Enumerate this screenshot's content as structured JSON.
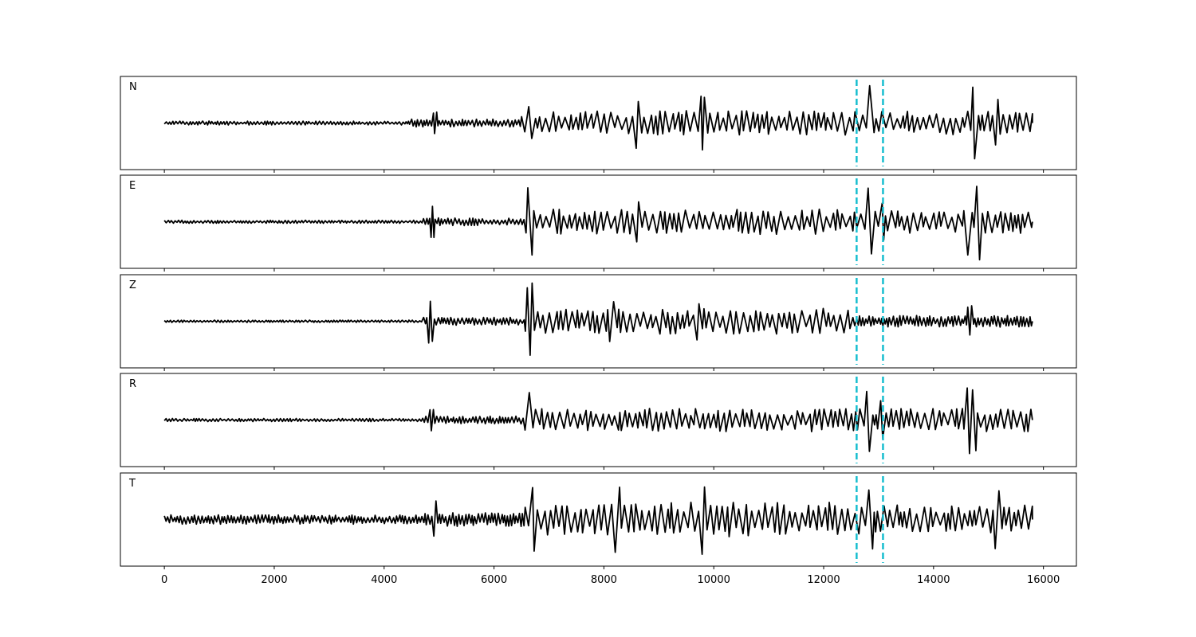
{
  "chart_data": {
    "type": "line",
    "xlim": [
      -800,
      16600
    ],
    "x_ticks": [
      0,
      2000,
      4000,
      6000,
      8000,
      10000,
      12000,
      14000,
      16000
    ],
    "x_tick_labels": [
      "0",
      "2000",
      "4000",
      "6000",
      "8000",
      "10000",
      "12000",
      "14000",
      "16000"
    ],
    "x_range": [
      0,
      15800
    ],
    "ylim": [
      -1.2,
      1.2
    ],
    "y_ticks_shown": false,
    "grid": false,
    "line_color": "#000000",
    "marker_color": "#17becf",
    "markers": [
      12600,
      13080
    ],
    "panels": [
      {
        "label": "N",
        "segments": [
          {
            "from": 0,
            "to": 4500,
            "amp": 0.05
          },
          {
            "from": 4500,
            "to": 6500,
            "amp": 0.1
          },
          {
            "from": 6500,
            "to": 12500,
            "amp": 0.32
          },
          {
            "from": 12500,
            "to": 15800,
            "amp": 0.3
          }
        ],
        "events": [
          {
            "x": 4930,
            "amp": 0.3
          },
          {
            "x": 6650,
            "amp": 0.45
          },
          {
            "x": 8600,
            "amp": 0.65
          },
          {
            "x": 9800,
            "amp": 0.75
          },
          {
            "x": 12850,
            "amp": 1.0
          },
          {
            "x": 14750,
            "amp": 0.95
          },
          {
            "x": 15150,
            "amp": 0.65
          }
        ]
      },
      {
        "label": "E",
        "segments": [
          {
            "from": 0,
            "to": 4700,
            "amp": 0.04
          },
          {
            "from": 4700,
            "to": 6550,
            "amp": 0.1
          },
          {
            "from": 6550,
            "to": 12500,
            "amp": 0.33
          },
          {
            "from": 12500,
            "to": 15800,
            "amp": 0.3
          }
        ],
        "events": [
          {
            "x": 4880,
            "amp": 0.45
          },
          {
            "x": 6650,
            "amp": 0.9
          },
          {
            "x": 8600,
            "amp": 0.55
          },
          {
            "x": 12850,
            "amp": 0.95
          },
          {
            "x": 13050,
            "amp": 0.5
          },
          {
            "x": 14650,
            "amp": 0.9
          },
          {
            "x": 14800,
            "amp": 1.0
          }
        ]
      },
      {
        "label": "Z",
        "segments": [
          {
            "from": 0,
            "to": 4700,
            "amp": 0.03
          },
          {
            "from": 4700,
            "to": 6550,
            "amp": 0.1
          },
          {
            "from": 6550,
            "to": 12500,
            "amp": 0.33
          },
          {
            "from": 12500,
            "to": 15800,
            "amp": 0.15
          }
        ],
        "events": [
          {
            "x": 4850,
            "amp": 0.6
          },
          {
            "x": 6650,
            "amp": 1.0
          },
          {
            "x": 8150,
            "amp": 0.55
          },
          {
            "x": 9700,
            "amp": 0.5
          },
          {
            "x": 14650,
            "amp": 0.4
          }
        ]
      },
      {
        "label": "R",
        "segments": [
          {
            "from": 0,
            "to": 4700,
            "amp": 0.04
          },
          {
            "from": 4700,
            "to": 6550,
            "amp": 0.1
          },
          {
            "from": 6550,
            "to": 12500,
            "amp": 0.3
          },
          {
            "from": 12500,
            "to": 15800,
            "amp": 0.3
          }
        ],
        "events": [
          {
            "x": 4870,
            "amp": 0.3
          },
          {
            "x": 6650,
            "amp": 0.8
          },
          {
            "x": 12820,
            "amp": 0.85
          },
          {
            "x": 13050,
            "amp": 0.55
          },
          {
            "x": 14650,
            "amp": 0.95
          },
          {
            "x": 14750,
            "amp": 0.9
          }
        ]
      },
      {
        "label": "T",
        "segments": [
          {
            "from": 0,
            "to": 4700,
            "amp": 0.12
          },
          {
            "from": 4700,
            "to": 6550,
            "amp": 0.18
          },
          {
            "from": 6550,
            "to": 12500,
            "amp": 0.45
          },
          {
            "from": 12500,
            "to": 15800,
            "amp": 0.38
          }
        ],
        "events": [
          {
            "x": 4930,
            "amp": 0.5
          },
          {
            "x": 6720,
            "amp": 0.95
          },
          {
            "x": 8250,
            "amp": 0.85
          },
          {
            "x": 9800,
            "amp": 0.95
          },
          {
            "x": 12850,
            "amp": 0.85
          },
          {
            "x": 15150,
            "amp": 0.8
          }
        ]
      }
    ]
  }
}
